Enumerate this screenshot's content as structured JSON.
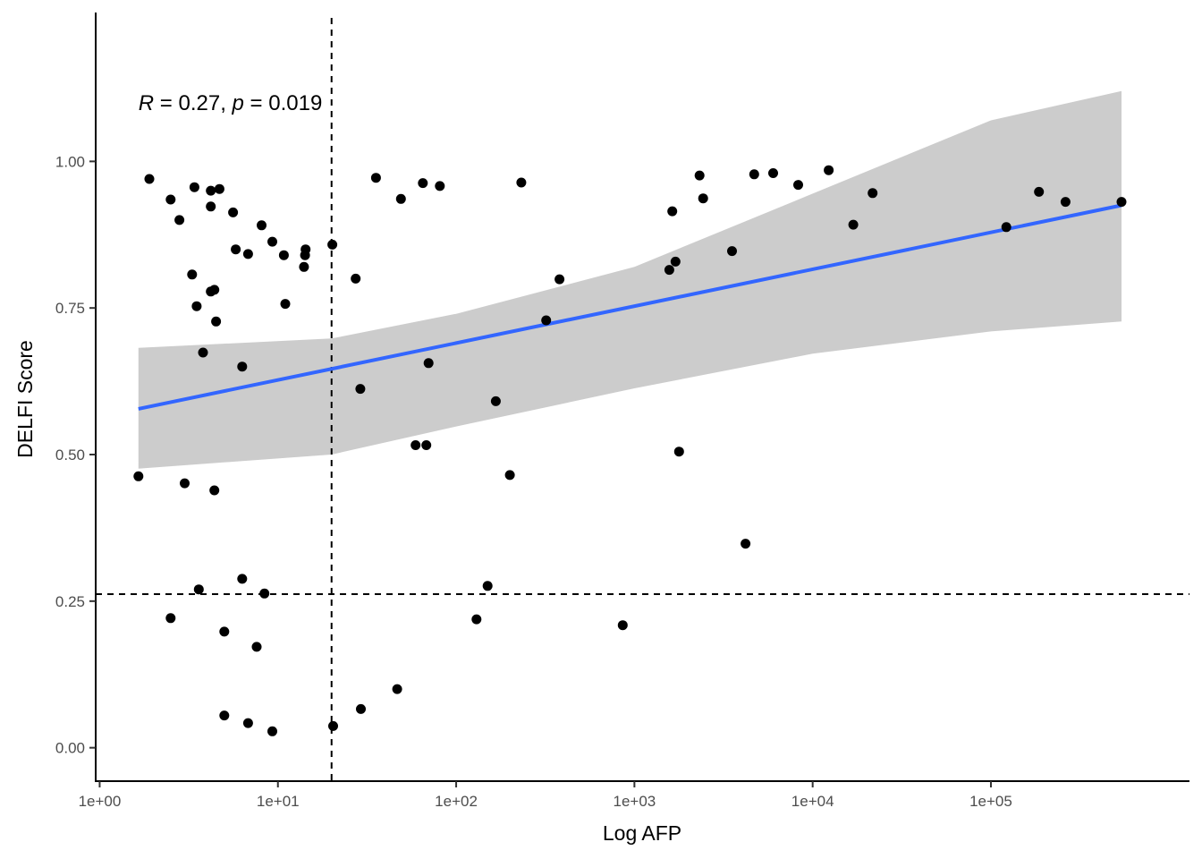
{
  "chart_data": {
    "type": "scatter",
    "xlabel": "Log AFP",
    "ylabel": "DELFI Score",
    "x_scale": "log10",
    "xlim": [
      0.95,
      1300000
    ],
    "ylim": [
      -0.057,
      1.26
    ],
    "x_ticks": [
      {
        "value": 1,
        "label": "1e+00"
      },
      {
        "value": 10,
        "label": "1e+01"
      },
      {
        "value": 100,
        "label": "1e+02"
      },
      {
        "value": 1000,
        "label": "1e+03"
      },
      {
        "value": 10000,
        "label": "1e+04"
      },
      {
        "value": 100000,
        "label": "1e+05"
      }
    ],
    "y_ticks": [
      {
        "value": 0,
        "label": "0.00"
      },
      {
        "value": 0.25,
        "label": "0.25"
      },
      {
        "value": 0.5,
        "label": "0.50"
      },
      {
        "value": 0.75,
        "label": "0.75"
      },
      {
        "value": 1,
        "label": "1.00"
      }
    ],
    "annotation": {
      "r_label": "R",
      "r_value": " = 0.27, ",
      "p_label": "p",
      "p_value": " = 0.019"
    },
    "annotation_pos": {
      "x": 1.65,
      "y": 1.1
    },
    "reference_lines": {
      "vertical_x": 20,
      "horizontal_y": 0.262
    },
    "regression": {
      "color": "#3366ff",
      "x_start": 1.65,
      "y_start": 0.578,
      "x_end": 540000,
      "y_end": 0.925
    },
    "confidence_band": {
      "color": "#cccccc",
      "upper": [
        [
          1.65,
          0.682
        ],
        [
          20,
          0.698
        ],
        [
          100,
          0.74
        ],
        [
          1000,
          0.82
        ],
        [
          10000,
          0.945
        ],
        [
          100000,
          1.07
        ],
        [
          540000,
          1.12
        ]
      ],
      "lower": [
        [
          540000,
          0.727
        ],
        [
          100000,
          0.71
        ],
        [
          10000,
          0.672
        ],
        [
          1000,
          0.613
        ],
        [
          100,
          0.548
        ],
        [
          20,
          0.5
        ],
        [
          1.65,
          0.476
        ]
      ]
    },
    "point_color": "#000000",
    "points": [
      {
        "x": 1.65,
        "y": 0.463
      },
      {
        "x": 1.9,
        "y": 0.97
      },
      {
        "x": 2.5,
        "y": 0.935
      },
      {
        "x": 2.5,
        "y": 0.221
      },
      {
        "x": 2.8,
        "y": 0.9
      },
      {
        "x": 3.0,
        "y": 0.451
      },
      {
        "x": 3.3,
        "y": 0.807
      },
      {
        "x": 3.4,
        "y": 0.956
      },
      {
        "x": 3.5,
        "y": 0.753
      },
      {
        "x": 3.6,
        "y": 0.27
      },
      {
        "x": 3.8,
        "y": 0.674
      },
      {
        "x": 4.2,
        "y": 0.95
      },
      {
        "x": 4.2,
        "y": 0.923
      },
      {
        "x": 4.2,
        "y": 0.778
      },
      {
        "x": 4.4,
        "y": 0.781
      },
      {
        "x": 4.4,
        "y": 0.439
      },
      {
        "x": 4.5,
        "y": 0.727
      },
      {
        "x": 4.7,
        "y": 0.953
      },
      {
        "x": 5.0,
        "y": 0.198
      },
      {
        "x": 5.0,
        "y": 0.055
      },
      {
        "x": 5.6,
        "y": 0.913
      },
      {
        "x": 5.8,
        "y": 0.85
      },
      {
        "x": 6.3,
        "y": 0.65
      },
      {
        "x": 6.3,
        "y": 0.288
      },
      {
        "x": 6.8,
        "y": 0.842
      },
      {
        "x": 6.8,
        "y": 0.042
      },
      {
        "x": 7.6,
        "y": 0.172
      },
      {
        "x": 8.1,
        "y": 0.891
      },
      {
        "x": 8.4,
        "y": 0.263
      },
      {
        "x": 9.3,
        "y": 0.863
      },
      {
        "x": 9.3,
        "y": 0.028
      },
      {
        "x": 10.8,
        "y": 0.84
      },
      {
        "x": 11.0,
        "y": 0.757
      },
      {
        "x": 14.0,
        "y": 0.82
      },
      {
        "x": 14.2,
        "y": 0.84
      },
      {
        "x": 14.3,
        "y": 0.85
      },
      {
        "x": 20.2,
        "y": 0.858
      },
      {
        "x": 20.4,
        "y": 0.037
      },
      {
        "x": 27.3,
        "y": 0.8
      },
      {
        "x": 29.0,
        "y": 0.612
      },
      {
        "x": 29.2,
        "y": 0.066
      },
      {
        "x": 35.5,
        "y": 0.972
      },
      {
        "x": 46.7,
        "y": 0.1
      },
      {
        "x": 49.0,
        "y": 0.936
      },
      {
        "x": 59.2,
        "y": 0.516
      },
      {
        "x": 65.0,
        "y": 0.963
      },
      {
        "x": 68.0,
        "y": 0.516
      },
      {
        "x": 70.0,
        "y": 0.656
      },
      {
        "x": 81.0,
        "y": 0.958
      },
      {
        "x": 130.0,
        "y": 0.219
      },
      {
        "x": 150.0,
        "y": 0.276
      },
      {
        "x": 167.0,
        "y": 0.591
      },
      {
        "x": 200.0,
        "y": 0.465
      },
      {
        "x": 232.0,
        "y": 0.964
      },
      {
        "x": 320.0,
        "y": 0.729
      },
      {
        "x": 380.0,
        "y": 0.799
      },
      {
        "x": 860.0,
        "y": 0.209
      },
      {
        "x": 1570.0,
        "y": 0.815
      },
      {
        "x": 1630.0,
        "y": 0.915
      },
      {
        "x": 1700.0,
        "y": 0.829
      },
      {
        "x": 1780.0,
        "y": 0.505
      },
      {
        "x": 2320.0,
        "y": 0.976
      },
      {
        "x": 2430.0,
        "y": 0.937
      },
      {
        "x": 3530.0,
        "y": 0.847
      },
      {
        "x": 4200.0,
        "y": 0.348
      },
      {
        "x": 4700.0,
        "y": 0.978
      },
      {
        "x": 6000.0,
        "y": 0.98
      },
      {
        "x": 8300.0,
        "y": 0.96
      },
      {
        "x": 12300.0,
        "y": 0.985
      },
      {
        "x": 16900.0,
        "y": 0.892
      },
      {
        "x": 21700.0,
        "y": 0.946
      },
      {
        "x": 122000.0,
        "y": 0.888
      },
      {
        "x": 186000.0,
        "y": 0.948
      },
      {
        "x": 262000.0,
        "y": 0.931
      },
      {
        "x": 540000.0,
        "y": 0.931
      }
    ]
  }
}
